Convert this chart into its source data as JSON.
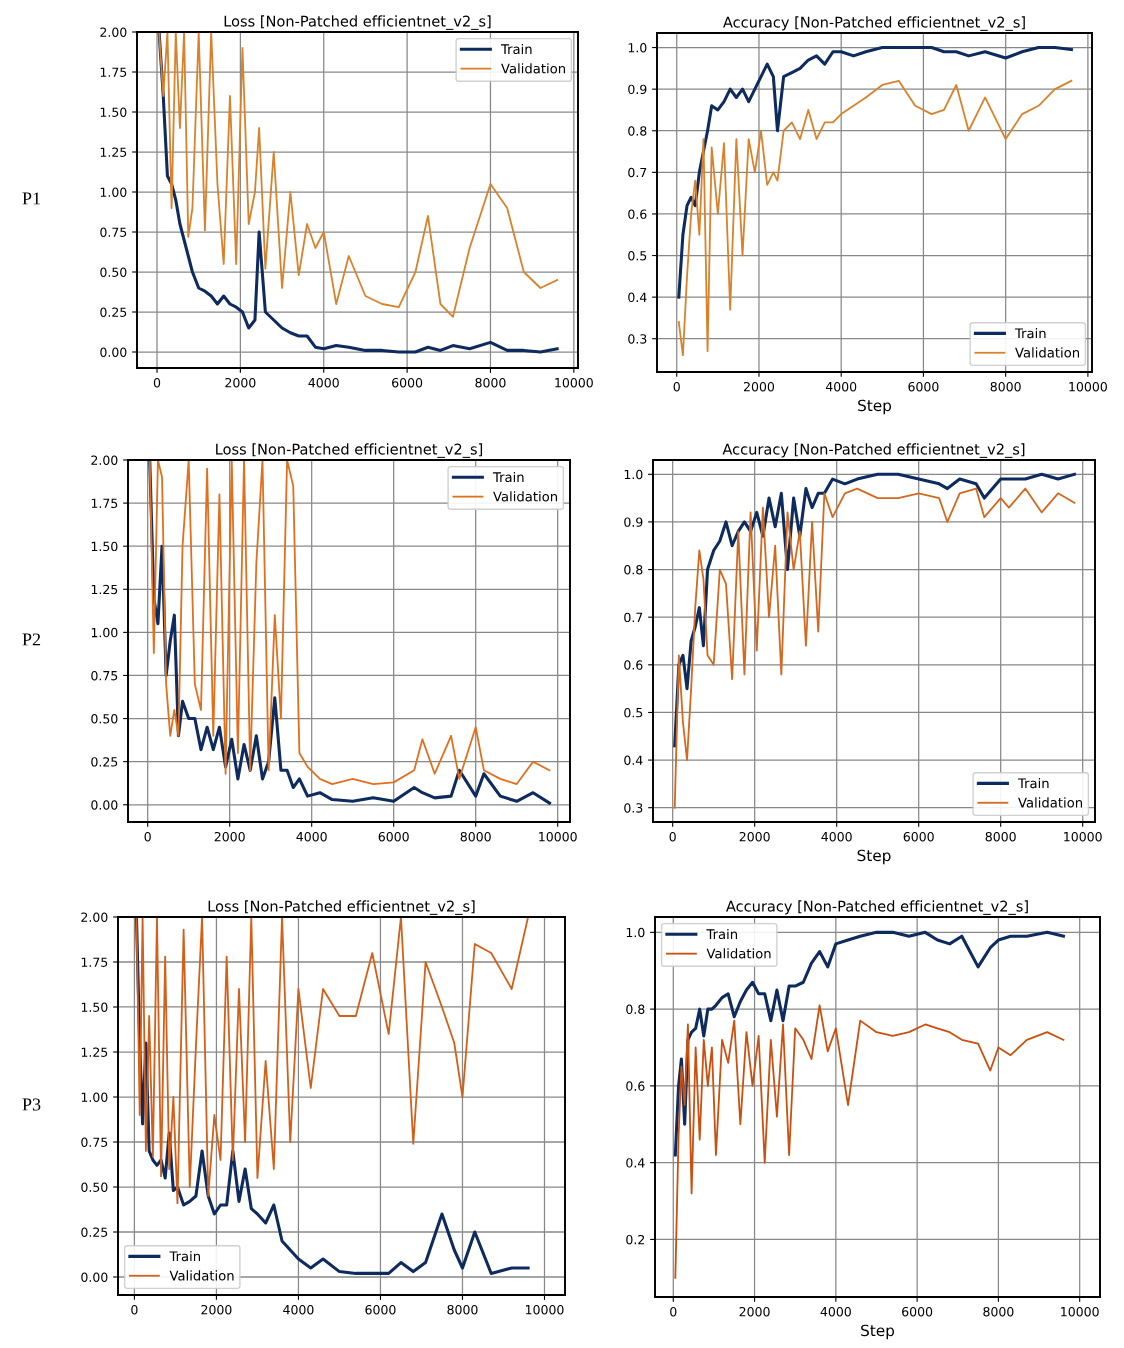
{
  "chart_data": [
    {
      "type": "line",
      "title": "Loss [Non-Patched efficientnet_v2_s]",
      "annotations": [
        "P1"
      ],
      "legend": "top right",
      "grid": true,
      "xlim": [
        -480,
        10100
      ],
      "xticks": [
        0,
        2000,
        4000,
        6000,
        8000,
        10000
      ],
      "ylim": [
        -0.1,
        2.0
      ],
      "yticks": [
        {
          "value": 0,
          "label": "0.00"
        },
        {
          "value": 0.25,
          "label": "0.25"
        },
        {
          "value": 0.5,
          "label": "0.50"
        },
        {
          "value": 0.75,
          "label": "0.75"
        },
        {
          "value": 1,
          "label": "1.00"
        },
        {
          "value": 1.25,
          "label": "1.25"
        },
        {
          "value": 1.5,
          "label": "1.50"
        },
        {
          "value": 1.75,
          "label": "1.75"
        },
        {
          "value": 2,
          "label": "2.00"
        }
      ],
      "x": [
        50,
        150,
        250,
        350,
        450,
        550,
        650,
        750,
        850,
        1000,
        1150,
        1300,
        1450,
        1600,
        1750,
        1900,
        2050,
        2200,
        2350,
        2450,
        2600,
        2800,
        3000,
        3200,
        3400,
        3600,
        3800,
        4000,
        4300,
        4600,
        5000,
        5400,
        5800,
        6200,
        6500,
        6800,
        7100,
        7500,
        8000,
        8400,
        8800,
        9200,
        9600
      ],
      "series": [
        {
          "name": "Train",
          "color": "#0d2b5e",
          "values": [
            2.0,
            1.6,
            1.1,
            1.05,
            0.95,
            0.8,
            0.7,
            0.6,
            0.5,
            0.4,
            0.38,
            0.35,
            0.3,
            0.35,
            0.3,
            0.28,
            0.25,
            0.15,
            0.2,
            0.75,
            0.25,
            0.2,
            0.15,
            0.12,
            0.1,
            0.1,
            0.03,
            0.02,
            0.04,
            0.03,
            0.01,
            0.01,
            0.0,
            0.0,
            0.03,
            0.01,
            0.04,
            0.02,
            0.06,
            0.01,
            0.01,
            0.0,
            0.02
          ]
        },
        {
          "name": "Validation",
          "color": "#d9822b",
          "values": [
            2.0,
            1.6,
            2.0,
            0.9,
            2.0,
            1.4,
            2.0,
            0.72,
            0.9,
            2.0,
            0.76,
            2.0,
            1.05,
            0.55,
            1.6,
            0.55,
            1.9,
            0.8,
            1.0,
            1.4,
            0.52,
            1.25,
            0.4,
            1.0,
            0.48,
            0.8,
            0.65,
            0.75,
            0.3,
            0.6,
            0.35,
            0.3,
            0.28,
            0.5,
            0.85,
            0.3,
            0.22,
            0.65,
            1.05,
            0.9,
            0.5,
            0.4,
            0.45
          ]
        }
      ]
    },
    {
      "type": "line",
      "title": "Accuracy [Non-Patched efficientnet_v2_s]",
      "xlabel": "Step",
      "legend": "bottom right",
      "grid": true,
      "xlim": [
        -480,
        10100
      ],
      "xticks": [
        0,
        2000,
        4000,
        6000,
        8000,
        10000
      ],
      "ylim": [
        0.22,
        1.035
      ],
      "yticks": [
        0.3,
        0.4,
        0.5,
        0.6,
        0.7,
        0.8,
        0.9,
        {
          "value": 1,
          "label": "1.0"
        }
      ],
      "x": [
        50,
        150,
        250,
        350,
        450,
        550,
        650,
        750,
        850,
        1000,
        1150,
        1300,
        1450,
        1600,
        1750,
        1900,
        2050,
        2200,
        2350,
        2450,
        2600,
        2800,
        3000,
        3200,
        3400,
        3600,
        3800,
        4000,
        4300,
        4600,
        5000,
        5400,
        5800,
        6200,
        6500,
        6800,
        7100,
        7500,
        8000,
        8400,
        8800,
        9200,
        9600
      ],
      "series": [
        {
          "name": "Train",
          "color": "#0d2b5e",
          "values": [
            0.4,
            0.55,
            0.62,
            0.64,
            0.62,
            0.7,
            0.75,
            0.8,
            0.86,
            0.85,
            0.87,
            0.9,
            0.88,
            0.9,
            0.87,
            0.9,
            0.93,
            0.96,
            0.93,
            0.8,
            0.93,
            0.94,
            0.95,
            0.97,
            0.98,
            0.96,
            0.99,
            0.99,
            0.98,
            0.99,
            1.0,
            1.0,
            1.0,
            1.0,
            0.99,
            0.99,
            0.98,
            0.99,
            0.975,
            0.99,
            1.0,
            1.0,
            0.995
          ]
        },
        {
          "name": "Validation",
          "color": "#d9822b",
          "values": [
            0.34,
            0.26,
            0.45,
            0.6,
            0.68,
            0.55,
            0.78,
            0.27,
            0.76,
            0.6,
            0.77,
            0.37,
            0.78,
            0.5,
            0.78,
            0.7,
            0.8,
            0.67,
            0.7,
            0.68,
            0.8,
            0.82,
            0.78,
            0.85,
            0.78,
            0.82,
            0.82,
            0.84,
            0.86,
            0.88,
            0.91,
            0.92,
            0.86,
            0.84,
            0.85,
            0.91,
            0.8,
            0.88,
            0.78,
            0.84,
            0.86,
            0.9,
            0.92
          ]
        }
      ]
    },
    {
      "type": "line",
      "title": "Loss [Non-Patched efficientnet_v2_s]",
      "annotations": [
        "P2"
      ],
      "legend": "top right",
      "grid": true,
      "xlim": [
        -480,
        10300
      ],
      "xticks": [
        0,
        2000,
        4000,
        6000,
        8000,
        10000
      ],
      "ylim": [
        -0.1,
        2.0
      ],
      "yticks": [
        {
          "value": 0,
          "label": "0.00"
        },
        {
          "value": 0.25,
          "label": "0.25"
        },
        {
          "value": 0.5,
          "label": "0.50"
        },
        {
          "value": 0.75,
          "label": "0.75"
        },
        {
          "value": 1,
          "label": "1.00"
        },
        {
          "value": 1.25,
          "label": "1.25"
        },
        {
          "value": 1.5,
          "label": "1.50"
        },
        {
          "value": 1.75,
          "label": "1.75"
        },
        {
          "value": 2,
          "label": "2.00"
        }
      ],
      "x": [
        50,
        150,
        250,
        350,
        450,
        550,
        650,
        750,
        850,
        1000,
        1150,
        1300,
        1450,
        1600,
        1750,
        1900,
        2050,
        2200,
        2350,
        2500,
        2650,
        2800,
        2950,
        3100,
        3250,
        3400,
        3550,
        3700,
        3900,
        4200,
        4500,
        5000,
        5500,
        6000,
        6500,
        6700,
        7000,
        7400,
        7600,
        8000,
        8200,
        8600,
        9000,
        9400,
        9800
      ],
      "series": [
        {
          "name": "Train",
          "color": "#0d2b5e",
          "values": [
            2.0,
            1.2,
            1.05,
            1.5,
            0.75,
            0.95,
            1.1,
            0.4,
            0.6,
            0.5,
            0.5,
            0.32,
            0.45,
            0.32,
            0.45,
            0.22,
            0.38,
            0.15,
            0.35,
            0.2,
            0.4,
            0.15,
            0.25,
            0.62,
            0.2,
            0.2,
            0.1,
            0.15,
            0.05,
            0.07,
            0.03,
            0.02,
            0.04,
            0.02,
            0.1,
            0.07,
            0.04,
            0.05,
            0.2,
            0.05,
            0.18,
            0.05,
            0.02,
            0.07,
            0.01
          ]
        },
        {
          "name": "Validation",
          "color": "#e0701e",
          "values": [
            2.0,
            0.88,
            2.0,
            1.9,
            0.7,
            0.4,
            0.55,
            0.4,
            1.5,
            2.0,
            0.7,
            0.55,
            1.95,
            0.4,
            1.8,
            0.18,
            2.0,
            0.3,
            2.0,
            0.2,
            1.4,
            2.0,
            0.2,
            1.1,
            0.5,
            2.0,
            1.85,
            0.3,
            0.22,
            0.15,
            0.12,
            0.15,
            0.12,
            0.13,
            0.2,
            0.38,
            0.18,
            0.4,
            0.15,
            0.45,
            0.2,
            0.15,
            0.12,
            0.25,
            0.2
          ]
        }
      ]
    },
    {
      "type": "line",
      "title": "Accuracy [Non-Patched efficientnet_v2_s]",
      "xlabel": "Step",
      "legend": "bottom right",
      "grid": true,
      "xlim": [
        -480,
        10300
      ],
      "xticks": [
        0,
        2000,
        4000,
        6000,
        8000,
        10000
      ],
      "ylim": [
        0.27,
        1.03
      ],
      "yticks": [
        0.3,
        0.4,
        0.5,
        0.6,
        0.7,
        0.8,
        0.9,
        {
          "value": 1,
          "label": "1.0"
        }
      ],
      "x": [
        50,
        150,
        250,
        350,
        450,
        550,
        650,
        750,
        850,
        1000,
        1150,
        1300,
        1450,
        1600,
        1750,
        1900,
        2050,
        2200,
        2350,
        2500,
        2650,
        2800,
        2950,
        3100,
        3250,
        3400,
        3550,
        3700,
        3900,
        4200,
        4500,
        5000,
        5500,
        6000,
        6500,
        6700,
        7000,
        7400,
        7600,
        8000,
        8200,
        8600,
        9000,
        9400,
        9800
      ],
      "series": [
        {
          "name": "Train",
          "color": "#0d2b5e",
          "values": [
            0.43,
            0.6,
            0.62,
            0.55,
            0.65,
            0.68,
            0.72,
            0.64,
            0.8,
            0.84,
            0.86,
            0.9,
            0.85,
            0.88,
            0.9,
            0.88,
            0.92,
            0.87,
            0.95,
            0.89,
            0.96,
            0.8,
            0.95,
            0.87,
            0.97,
            0.93,
            0.96,
            0.96,
            0.99,
            0.98,
            0.99,
            1.0,
            1.0,
            0.99,
            0.98,
            0.97,
            0.99,
            0.98,
            0.95,
            0.99,
            0.99,
            0.99,
            1.0,
            0.99,
            1.0
          ]
        },
        {
          "name": "Validation",
          "color": "#d2691e",
          "values": [
            0.3,
            0.62,
            0.48,
            0.4,
            0.55,
            0.72,
            0.84,
            0.78,
            0.62,
            0.6,
            0.8,
            0.77,
            0.57,
            0.88,
            0.58,
            0.92,
            0.63,
            0.93,
            0.7,
            0.85,
            0.58,
            0.92,
            0.8,
            0.88,
            0.64,
            0.9,
            0.67,
            0.96,
            0.91,
            0.96,
            0.97,
            0.95,
            0.95,
            0.96,
            0.95,
            0.9,
            0.96,
            0.97,
            0.91,
            0.95,
            0.93,
            0.97,
            0.92,
            0.96,
            0.94
          ]
        }
      ]
    },
    {
      "type": "line",
      "title": "Loss [Non-Patched efficientnet_v2_s]",
      "annotations": [
        "P3"
      ],
      "legend": "bottom left",
      "grid": true,
      "xlim": [
        -400,
        10500
      ],
      "xticks": [
        0,
        2000,
        4000,
        6000,
        8000,
        10000
      ],
      "ylim": [
        -0.1,
        2.0
      ],
      "yticks": [
        {
          "value": 0,
          "label": "0.00"
        },
        {
          "value": 0.25,
          "label": "0.25"
        },
        {
          "value": 0.5,
          "label": "0.50"
        },
        {
          "value": 0.75,
          "label": "0.75"
        },
        {
          "value": 1,
          "label": "1.00"
        },
        {
          "value": 1.25,
          "label": "1.25"
        },
        {
          "value": 1.5,
          "label": "1.50"
        },
        {
          "value": 1.75,
          "label": "1.75"
        },
        {
          "value": 2,
          "label": "2.00"
        }
      ],
      "x": [
        50,
        130,
        200,
        280,
        360,
        450,
        550,
        650,
        750,
        850,
        950,
        1050,
        1200,
        1350,
        1500,
        1650,
        1800,
        1950,
        2100,
        2250,
        2400,
        2550,
        2700,
        2850,
        3000,
        3200,
        3400,
        3600,
        3800,
        4000,
        4300,
        4600,
        5000,
        5400,
        5800,
        6200,
        6500,
        6800,
        7100,
        7500,
        7800,
        8000,
        8300,
        8700,
        9200,
        9600
      ],
      "series": [
        {
          "name": "Train",
          "color": "#0d2b5e",
          "values": [
            2.0,
            1.3,
            0.85,
            1.3,
            0.7,
            0.65,
            0.62,
            0.65,
            0.55,
            0.8,
            0.48,
            0.5,
            0.4,
            0.42,
            0.45,
            0.7,
            0.45,
            0.35,
            0.4,
            0.4,
            0.7,
            0.42,
            0.6,
            0.38,
            0.35,
            0.3,
            0.4,
            0.2,
            0.15,
            0.1,
            0.05,
            0.1,
            0.03,
            0.02,
            0.02,
            0.02,
            0.08,
            0.03,
            0.08,
            0.35,
            0.15,
            0.05,
            0.25,
            0.02,
            0.05,
            0.05
          ]
        },
        {
          "name": "Validation",
          "color": "#d2601a",
          "values": [
            2.0,
            0.9,
            2.0,
            0.7,
            1.45,
            0.67,
            2.0,
            0.56,
            1.78,
            0.6,
            1.0,
            0.41,
            1.93,
            0.5,
            1.28,
            2.0,
            0.45,
            0.9,
            0.65,
            1.78,
            0.65,
            1.6,
            0.75,
            2.0,
            0.55,
            1.2,
            0.6,
            2.0,
            0.75,
            1.6,
            1.05,
            1.6,
            1.45,
            1.45,
            1.8,
            1.35,
            2.0,
            0.74,
            1.75,
            1.5,
            1.3,
            1.0,
            1.85,
            1.8,
            1.6,
            2.0
          ]
        }
      ]
    },
    {
      "type": "line",
      "title": "Accuracy [Non-Patched efficientnet_v2_s]",
      "xlabel": "Step",
      "legend": "top left",
      "grid": true,
      "xlim": [
        -450,
        10500
      ],
      "xticks": [
        0,
        2000,
        4000,
        6000,
        8000,
        10000
      ],
      "ylim": [
        0.05,
        1.04
      ],
      "yticks": [
        0.2,
        0.4,
        0.6,
        0.8,
        {
          "value": 1,
          "label": "1.0"
        }
      ],
      "x": [
        50,
        130,
        200,
        280,
        360,
        450,
        550,
        650,
        750,
        850,
        950,
        1050,
        1200,
        1350,
        1500,
        1650,
        1800,
        1950,
        2100,
        2250,
        2400,
        2550,
        2700,
        2850,
        3000,
        3200,
        3400,
        3600,
        3800,
        4000,
        4300,
        4600,
        5000,
        5400,
        5800,
        6200,
        6500,
        6800,
        7100,
        7500,
        7800,
        8000,
        8300,
        8700,
        9200,
        9600
      ],
      "series": [
        {
          "name": "Train",
          "color": "#0d2b5e",
          "values": [
            0.42,
            0.6,
            0.67,
            0.5,
            0.72,
            0.74,
            0.75,
            0.8,
            0.73,
            0.8,
            0.8,
            0.81,
            0.83,
            0.84,
            0.78,
            0.82,
            0.85,
            0.87,
            0.84,
            0.84,
            0.77,
            0.85,
            0.77,
            0.86,
            0.86,
            0.87,
            0.92,
            0.95,
            0.91,
            0.97,
            0.98,
            0.99,
            1.0,
            1.0,
            0.99,
            1.0,
            0.98,
            0.97,
            0.99,
            0.91,
            0.96,
            0.98,
            0.99,
            0.99,
            1.0,
            0.99
          ]
        },
        {
          "name": "Validation",
          "color": "#c9500f",
          "values": [
            0.1,
            0.47,
            0.65,
            0.55,
            0.76,
            0.32,
            0.7,
            0.46,
            0.72,
            0.6,
            0.7,
            0.42,
            0.72,
            0.66,
            0.77,
            0.5,
            0.74,
            0.6,
            0.73,
            0.4,
            0.72,
            0.52,
            0.76,
            0.42,
            0.75,
            0.72,
            0.67,
            0.81,
            0.69,
            0.75,
            0.55,
            0.77,
            0.74,
            0.73,
            0.74,
            0.76,
            0.75,
            0.74,
            0.72,
            0.71,
            0.64,
            0.7,
            0.68,
            0.72,
            0.74,
            0.72
          ]
        }
      ]
    }
  ]
}
